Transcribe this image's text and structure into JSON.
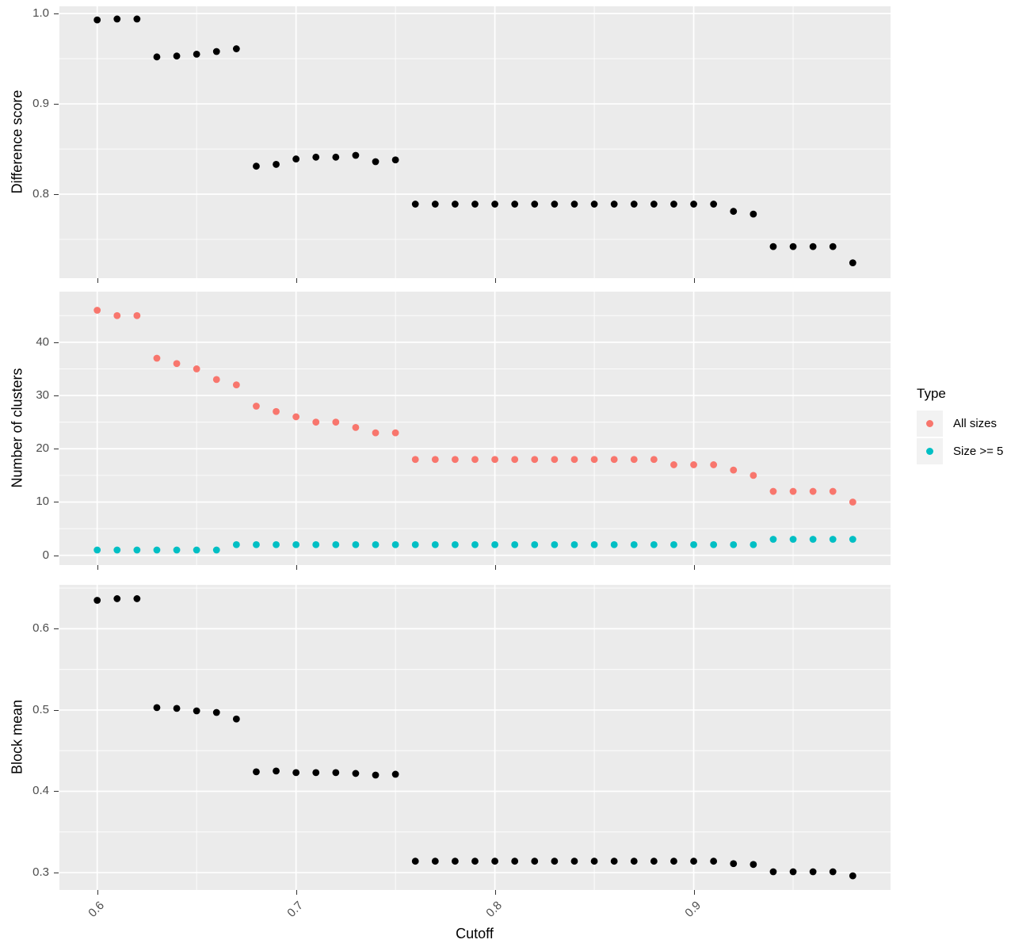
{
  "x_axis": {
    "title": "Cutoff",
    "domain": [
      0.581,
      0.999
    ],
    "ticks": [
      0.6,
      0.7,
      0.8,
      0.9
    ],
    "tick_labels": [
      "0.6",
      "0.7",
      "0.8",
      "0.9"
    ],
    "minor_ticks": [
      0.65,
      0.75,
      0.85,
      0.95
    ]
  },
  "cutoffs": [
    0.6,
    0.61,
    0.62,
    0.63,
    0.64,
    0.65,
    0.66,
    0.67,
    0.68,
    0.69,
    0.7,
    0.71,
    0.72,
    0.73,
    0.74,
    0.75,
    0.76,
    0.77,
    0.78,
    0.79,
    0.8,
    0.81,
    0.82,
    0.83,
    0.84,
    0.85,
    0.86,
    0.87,
    0.88,
    0.89,
    0.9,
    0.91,
    0.92,
    0.93,
    0.94,
    0.95,
    0.96,
    0.97,
    0.98
  ],
  "chart_data": [
    {
      "type": "scatter",
      "title": "",
      "xlabel": "Cutoff",
      "ylabel": "Difference score",
      "ydomain": [
        0.707,
        1.008
      ],
      "yticks": [
        1.0,
        0.9,
        0.8
      ],
      "ytick_labels": [
        "1.0",
        "0.9",
        "0.8"
      ],
      "yminor": [
        0.95,
        0.85,
        0.75
      ],
      "grid": true,
      "series": [
        {
          "name": "Difference score",
          "color": "#000000",
          "values": [
            0.993,
            0.994,
            0.994,
            0.952,
            0.953,
            0.955,
            0.958,
            0.961,
            0.831,
            0.833,
            0.839,
            0.841,
            0.841,
            0.843,
            0.836,
            0.838,
            0.789,
            0.789,
            0.789,
            0.789,
            0.789,
            0.789,
            0.789,
            0.789,
            0.789,
            0.789,
            0.789,
            0.789,
            0.789,
            0.789,
            0.789,
            0.789,
            0.781,
            0.778,
            0.742,
            0.742,
            0.742,
            0.742,
            0.724
          ]
        }
      ]
    },
    {
      "type": "scatter",
      "title": "",
      "xlabel": "Cutoff",
      "ylabel": "Number of clusters",
      "ydomain": [
        -1.83,
        49.5
      ],
      "yticks": [
        40,
        30,
        20,
        10,
        0
      ],
      "ytick_labels": [
        "40",
        "30",
        "20",
        "10",
        "0"
      ],
      "yminor": [
        45,
        35,
        25,
        15,
        5
      ],
      "grid": true,
      "legend_position": "right",
      "series": [
        {
          "name": "All sizes",
          "color": "#F8766D",
          "values": [
            46,
            45,
            45,
            37,
            36,
            35,
            33,
            32,
            28,
            27,
            26,
            25,
            25,
            24,
            23,
            23,
            18,
            18,
            18,
            18,
            18,
            18,
            18,
            18,
            18,
            18,
            18,
            18,
            18,
            17,
            17,
            17,
            16,
            15,
            12,
            12,
            12,
            12,
            10
          ]
        },
        {
          "name": "Size >= 5",
          "color": "#00BFC4",
          "values": [
            1,
            1,
            1,
            1,
            1,
            1,
            1,
            2,
            2,
            2,
            2,
            2,
            2,
            2,
            2,
            2,
            2,
            2,
            2,
            2,
            2,
            2,
            2,
            2,
            2,
            2,
            2,
            2,
            2,
            2,
            2,
            2,
            2,
            2,
            3,
            3,
            3,
            3,
            3
          ]
        }
      ]
    },
    {
      "type": "scatter",
      "title": "",
      "xlabel": "Cutoff",
      "ylabel": "Block mean",
      "ydomain": [
        0.2786,
        0.654
      ],
      "yticks": [
        0.6,
        0.5,
        0.4,
        0.3
      ],
      "ytick_labels": [
        "0.6",
        "0.5",
        "0.4",
        "0.3"
      ],
      "yminor": [
        0.65,
        0.55,
        0.45,
        0.35
      ],
      "grid": true,
      "series": [
        {
          "name": "Block mean",
          "color": "#000000",
          "values": [
            0.635,
            0.637,
            0.637,
            0.503,
            0.502,
            0.499,
            0.497,
            0.489,
            0.424,
            0.425,
            0.423,
            0.423,
            0.423,
            0.422,
            0.42,
            0.421,
            0.314,
            0.314,
            0.314,
            0.314,
            0.314,
            0.314,
            0.314,
            0.314,
            0.314,
            0.314,
            0.314,
            0.314,
            0.314,
            0.314,
            0.314,
            0.314,
            0.311,
            0.31,
            0.301,
            0.301,
            0.301,
            0.301,
            0.296
          ]
        }
      ]
    }
  ],
  "legend": {
    "title": "Type",
    "items": [
      {
        "label": "All sizes",
        "color": "#F8766D"
      },
      {
        "label": "Size >= 5",
        "color": "#00BFC4"
      }
    ]
  },
  "style": {
    "panel_background": "#EBEBEB",
    "gridline_color": "#FFFFFF",
    "tick_text_color": "#4D4D4D",
    "point_color_default": "#000000",
    "legend_key_background": "#F2F2F2"
  }
}
